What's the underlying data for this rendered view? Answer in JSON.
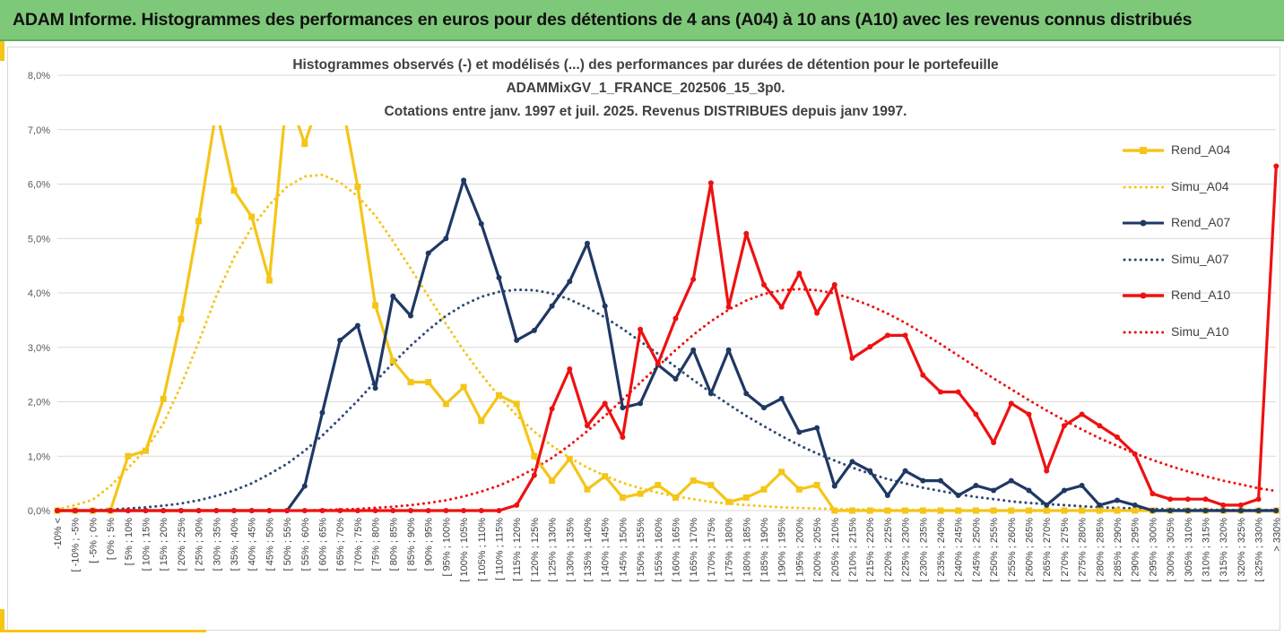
{
  "header": {
    "title": "ADAM Informe. Histogrammes des performances en euros pour des détentions de 4 ans (A04) à 10 ans (A10) avec les revenus connus distribués"
  },
  "colors": {
    "header_bg": "#7ec87a",
    "accent": "#f5c518",
    "A04": "#f5c518",
    "A07": "#1f3864",
    "A10": "#ee1111"
  },
  "chart_data": {
    "type": "line",
    "title_lines": [
      "Histogrammes observés (-) et modélisés (...) des performances par durées de détention pour le portefeuille",
      "ADAMMixGV_1_FRANCE_202506_15_3p0.",
      "Cotations entre janv. 1997 et juil. 2025. Revenus DISTRIBUES depuis janv 1997."
    ],
    "ylim": [
      0,
      8
    ],
    "y_ticks": [
      "0,0%",
      "1,0%",
      "2,0%",
      "3,0%",
      "4,0%",
      "5,0%",
      "6,0%",
      "7,0%",
      "8,0%"
    ],
    "grid": true,
    "legend_position": "right",
    "categories": [
      "-10% <",
      "[ -10% ; -5%",
      "[ -5% ; 0%",
      "[ 0% ; 5%",
      "[ 5% ; 10%",
      "[ 10% ; 15%",
      "[ 15% ; 20%",
      "[ 20% ; 25%",
      "[ 25% ; 30%",
      "[ 30% ; 35%",
      "[ 35% ; 40%",
      "[ 40% ; 45%",
      "[ 45% ; 50%",
      "[ 50% ; 55%",
      "[ 55% ; 60%",
      "[ 60% ; 65%",
      "[ 65% ; 70%",
      "[ 70% ; 75%",
      "[ 75% ; 80%",
      "[ 80% ; 85%",
      "[ 85% ; 90%",
      "[ 90% ; 95%",
      "[ 95% ; 100%",
      "[ 100% ; 105%",
      "[ 105% ; 110%",
      "[ 110% ; 115%",
      "[ 115% ; 120%",
      "[ 120% ; 125%",
      "[ 125% ; 130%",
      "[ 130% ; 135%",
      "[ 135% ; 140%",
      "[ 140% ; 145%",
      "[ 145% ; 150%",
      "[ 150% ; 155%",
      "[ 155% ; 160%",
      "[ 160% ; 165%",
      "[ 165% ; 170%",
      "[ 170% ; 175%",
      "[ 175% ; 180%",
      "[ 180% ; 185%",
      "[ 185% ; 190%",
      "[ 190% ; 195%",
      "[ 195% ; 200%",
      "[ 200% ; 205%",
      "[ 205% ; 210%",
      "[ 210% ; 215%",
      "[ 215% ; 220%",
      "[ 220% ; 225%",
      "[ 225% ; 230%",
      "[ 230% ; 235%",
      "[ 235% ; 240%",
      "[ 240% ; 245%",
      "[ 245% ; 250%",
      "[ 250% ; 255%",
      "[ 255% ; 260%",
      "[ 260% ; 265%",
      "[ 265% ; 270%",
      "[ 270% ; 275%",
      "[ 275% ; 280%",
      "[ 280% ; 285%",
      "[ 285% ; 290%",
      "[ 290% ; 295%",
      "[ 295% ; 300%",
      "[ 300% ; 305%",
      "[ 305% ; 310%",
      "[ 310% ; 315%",
      "[ 315% ; 320%",
      "[ 320% ; 325%",
      "[ 325% ; 330%",
      "> 330%"
    ],
    "series": [
      {
        "name": "Rend_A04",
        "key": "A04",
        "style": "solid",
        "marker": "square",
        "values": [
          0,
          0,
          0,
          0,
          1.0,
          1.1,
          2.05,
          3.52,
          5.32,
          7.37,
          5.88,
          5.4,
          4.23,
          7.7,
          6.74,
          7.7,
          7.7,
          5.95,
          3.77,
          2.75,
          2.36,
          2.36,
          1.96,
          2.27,
          1.65,
          2.12,
          1.96,
          1.0,
          0.55,
          0.95,
          0.39,
          0.63,
          0.24,
          0.31,
          0.47,
          0.24,
          0.55,
          0.47,
          0.16,
          0.24,
          0.39,
          0.71,
          0.39,
          0.47,
          0,
          0,
          0,
          0,
          0,
          0,
          0,
          0,
          0,
          0,
          0,
          0,
          0,
          0,
          0,
          0,
          0,
          0,
          0,
          0,
          0,
          0,
          0,
          0,
          0,
          0
        ]
      },
      {
        "name": "Simu_A04",
        "key": "A04",
        "style": "dotted",
        "values": [
          0.02,
          0.1,
          0.2,
          0.45,
          0.78,
          1.12,
          1.6,
          2.3,
          3.1,
          3.95,
          4.65,
          5.2,
          5.62,
          5.95,
          6.14,
          6.17,
          6.03,
          5.78,
          5.42,
          4.95,
          4.45,
          3.94,
          3.43,
          2.94,
          2.5,
          2.1,
          1.75,
          1.45,
          1.19,
          0.97,
          0.79,
          0.64,
          0.51,
          0.41,
          0.33,
          0.26,
          0.21,
          0.16,
          0.13,
          0.1,
          0.08,
          0.06,
          0.05,
          0.04,
          0.03,
          0.02,
          0.02,
          0.01,
          0.01,
          0.01,
          0.01,
          0,
          0,
          0,
          0,
          0,
          0,
          0,
          0,
          0,
          0,
          0,
          0,
          0,
          0,
          0,
          0,
          0,
          0,
          0
        ]
      },
      {
        "name": "Rend_A07",
        "key": "A07",
        "style": "solid",
        "marker": "circle",
        "values": [
          0,
          0,
          0,
          0,
          0,
          0,
          0,
          0,
          0,
          0,
          0,
          0,
          0,
          0,
          0.45,
          1.8,
          3.13,
          3.4,
          2.25,
          3.94,
          3.58,
          4.73,
          5.0,
          6.07,
          5.27,
          4.28,
          3.13,
          3.31,
          3.76,
          4.21,
          4.91,
          3.76,
          1.89,
          1.97,
          2.68,
          2.42,
          2.95,
          2.15,
          2.95,
          2.15,
          1.89,
          2.06,
          1.44,
          1.52,
          0.45,
          0.9,
          0.73,
          0.28,
          0.73,
          0.55,
          0.55,
          0.28,
          0.46,
          0.37,
          0.55,
          0.37,
          0.1,
          0.37,
          0.46,
          0.1,
          0.19,
          0.1,
          0,
          0,
          0,
          0,
          0,
          0,
          0,
          0
        ]
      },
      {
        "name": "Simu_A07",
        "key": "A07",
        "style": "dotted",
        "values": [
          0,
          0,
          0.01,
          0.02,
          0.04,
          0.06,
          0.09,
          0.13,
          0.19,
          0.27,
          0.37,
          0.5,
          0.67,
          0.86,
          1.1,
          1.38,
          1.69,
          2.02,
          2.37,
          2.71,
          3.03,
          3.32,
          3.58,
          3.78,
          3.93,
          4.02,
          4.06,
          4.05,
          3.99,
          3.88,
          3.73,
          3.55,
          3.34,
          3.11,
          2.88,
          2.64,
          2.4,
          2.17,
          1.95,
          1.74,
          1.55,
          1.37,
          1.2,
          1.05,
          0.92,
          0.79,
          0.68,
          0.58,
          0.5,
          0.42,
          0.36,
          0.3,
          0.25,
          0.21,
          0.17,
          0.14,
          0.12,
          0.1,
          0.08,
          0.06,
          0.05,
          0.04,
          0.03,
          0.03,
          0.02,
          0.02,
          0.01,
          0.01,
          0.01,
          0.01
        ]
      },
      {
        "name": "Rend_A10",
        "key": "A10",
        "style": "solid",
        "marker": "circle",
        "values": [
          0,
          0,
          0,
          0,
          0,
          0,
          0,
          0,
          0,
          0,
          0,
          0,
          0,
          0,
          0,
          0,
          0,
          0,
          0,
          0,
          0,
          0,
          0,
          0,
          0,
          0,
          0.1,
          0.65,
          1.87,
          2.6,
          1.56,
          1.97,
          1.35,
          3.33,
          2.7,
          3.53,
          4.25,
          6.02,
          3.74,
          5.09,
          4.15,
          3.74,
          4.36,
          3.63,
          4.15,
          2.8,
          3.01,
          3.22,
          3.22,
          2.49,
          2.18,
          2.18,
          1.77,
          1.25,
          1.97,
          1.77,
          0.73,
          1.56,
          1.77,
          1.56,
          1.35,
          1.04,
          0.31,
          0.21,
          0.21,
          0.21,
          0.1,
          0.1,
          0.21,
          6.33
        ]
      },
      {
        "name": "Simu_A10",
        "key": "A10",
        "style": "dotted",
        "values": [
          0,
          0,
          0,
          0,
          0,
          0,
          0,
          0,
          0,
          0,
          0,
          0,
          0,
          0,
          0,
          0.01,
          0.02,
          0.03,
          0.05,
          0.07,
          0.1,
          0.14,
          0.19,
          0.26,
          0.35,
          0.46,
          0.6,
          0.77,
          0.97,
          1.2,
          1.46,
          1.74,
          2.04,
          2.35,
          2.65,
          2.95,
          3.23,
          3.48,
          3.69,
          3.86,
          3.98,
          4.05,
          4.07,
          4.05,
          3.99,
          3.89,
          3.77,
          3.62,
          3.45,
          3.26,
          3.06,
          2.85,
          2.64,
          2.43,
          2.23,
          2.03,
          1.84,
          1.66,
          1.49,
          1.33,
          1.19,
          1.05,
          0.93,
          0.82,
          0.72,
          0.63,
          0.55,
          0.48,
          0.41,
          0.36
        ]
      }
    ]
  }
}
